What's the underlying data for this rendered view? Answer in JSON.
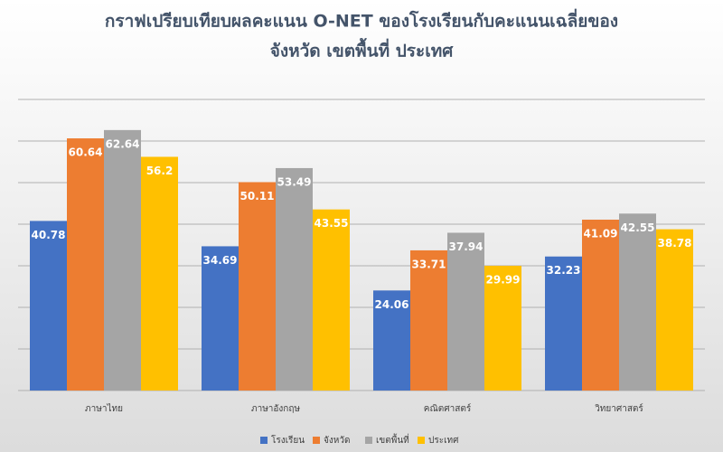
{
  "chart_data": {
    "type": "bar",
    "title": [
      "กราฟเปรียบเทียบผลคะแนน O-NET ของโรงเรียนกับคะแนนเฉลี่ยของ",
      "จังหวัด เขตพื้นที่ ประเทศ"
    ],
    "categories": [
      "ภาษาไทย",
      "ภาษาอังกฤษ",
      "คณิตศาสตร์",
      "วิทยาศาสตร์"
    ],
    "series": [
      {
        "name": "โรงเรียน",
        "color": "#4472c4",
        "values": [
          40.78,
          34.69,
          24.06,
          32.23
        ]
      },
      {
        "name": "จังหวัด",
        "color": "#ed7d31",
        "values": [
          60.64,
          50.11,
          33.71,
          41.09
        ]
      },
      {
        "name": "เขตพื้นที่",
        "color": "#a5a5a5",
        "values": [
          62.64,
          53.49,
          37.94,
          42.55
        ]
      },
      {
        "name": "ประเทศ",
        "color": "#ffc000",
        "values": [
          56.2,
          43.55,
          29.99,
          38.78
        ]
      }
    ],
    "ylim": [
      0,
      70
    ],
    "yticks": [
      0,
      10,
      20,
      30,
      40,
      50,
      60,
      70
    ],
    "grid": true,
    "legend": "bottom"
  }
}
